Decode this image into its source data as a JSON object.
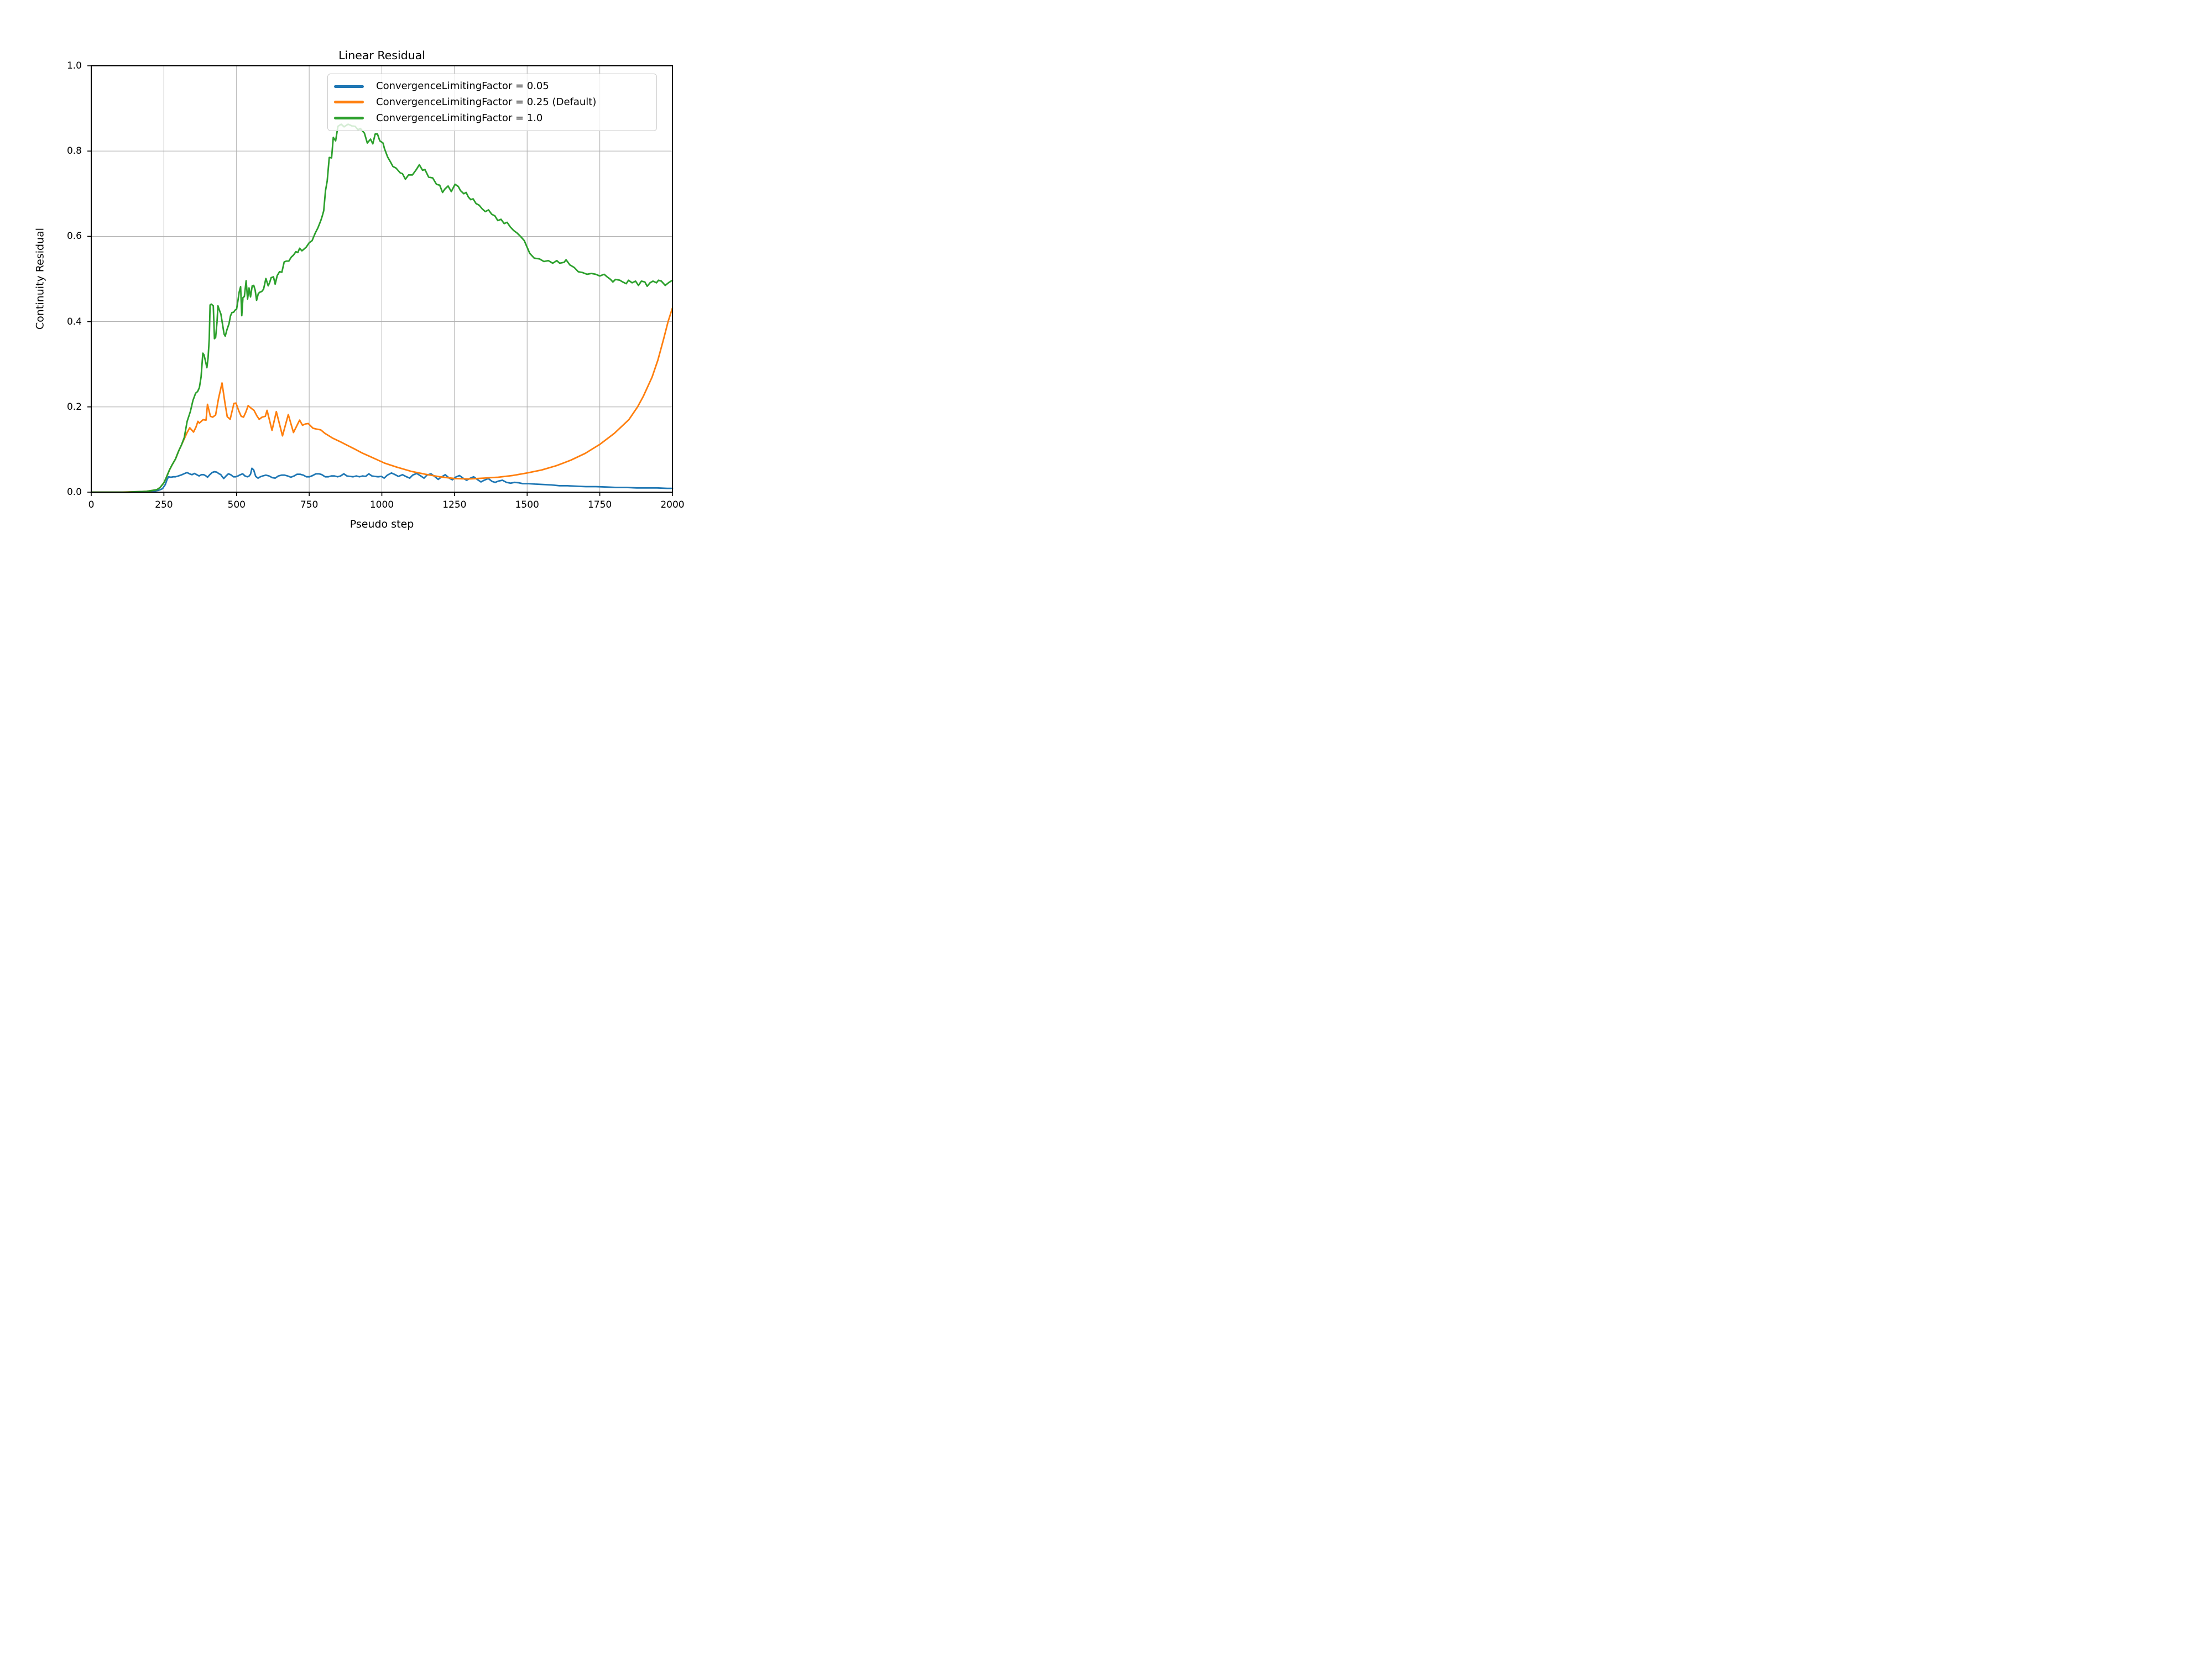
{
  "colors": {
    "background": "#ffffff",
    "text": "#000000",
    "grid": "#b0b0b0",
    "spine": "#000000",
    "legend_border": "#cccccc",
    "series_blue": "#1f77b4",
    "series_orange": "#ff7f0e",
    "series_green": "#2ca02c"
  },
  "chart_data": {
    "type": "line",
    "title": "Linear Residual",
    "xlabel": "Pseudo step",
    "ylabel": "Continuity Residual",
    "xlim": [
      0,
      2000
    ],
    "ylim": [
      0.0,
      1.0
    ],
    "grid": true,
    "gridcolor": "#b0b0b0",
    "legend_position": "upper center-right, inside axes",
    "xticks": {
      "values": [
        0,
        250,
        500,
        750,
        1000,
        1250,
        1500,
        1750,
        2000
      ],
      "labels": [
        "0",
        "250",
        "500",
        "750",
        "1000",
        "1250",
        "1500",
        "1750",
        "2000"
      ]
    },
    "yticks": {
      "values": [
        0.0,
        0.2,
        0.4,
        0.6,
        0.8,
        1.0
      ],
      "labels": [
        "0.0",
        "0.2",
        "0.4",
        "0.6",
        "0.8",
        "1.0"
      ]
    },
    "series": [
      {
        "name": "ConvergenceLimitingFactor = 0.05",
        "color": "#1f77b4",
        "x": [
          0,
          120,
          180,
          210,
          230,
          245,
          255,
          261,
          266,
          274,
          282,
          290,
          300,
          312,
          322,
          330,
          338,
          347,
          355,
          363,
          371,
          379,
          387,
          395,
          400,
          408,
          416,
          424,
          432,
          438,
          446,
          451,
          456,
          464,
          472,
          480,
          489,
          497,
          505,
          513,
          521,
          529,
          537,
          542,
          548,
          553,
          559,
          566,
          574,
          582,
          590,
          601,
          612,
          623,
          633,
          644,
          655,
          665,
          676,
          687,
          698,
          708,
          719,
          730,
          740,
          751,
          762,
          773,
          784,
          794,
          805,
          816,
          826,
          837,
          848,
          858,
          869,
          880,
          891,
          901,
          912,
          923,
          934,
          944,
          955,
          966,
          976,
          987,
          998,
          1008,
          1019,
          1033,
          1043,
          1057,
          1071,
          1085,
          1096,
          1106,
          1120,
          1134,
          1145,
          1155,
          1169,
          1183,
          1194,
          1204,
          1218,
          1232,
          1243,
          1253,
          1267,
          1281,
          1292,
          1302,
          1316,
          1330,
          1341,
          1352,
          1366,
          1380,
          1390,
          1401,
          1415,
          1429,
          1443,
          1457,
          1471,
          1485,
          1506,
          1527,
          1555,
          1583,
          1611,
          1639,
          1667,
          1702,
          1737,
          1772,
          1807,
          1842,
          1877,
          1912,
          1947,
          1982,
          2000
        ],
        "y": [
          0,
          0,
          0.001,
          0.002,
          0.004,
          0.008,
          0.018,
          0.03,
          0.036,
          0.035,
          0.036,
          0.036,
          0.038,
          0.041,
          0.044,
          0.046,
          0.043,
          0.041,
          0.044,
          0.041,
          0.038,
          0.041,
          0.041,
          0.038,
          0.035,
          0.041,
          0.046,
          0.048,
          0.047,
          0.044,
          0.041,
          0.036,
          0.032,
          0.038,
          0.043,
          0.041,
          0.036,
          0.036,
          0.038,
          0.041,
          0.043,
          0.038,
          0.036,
          0.037,
          0.042,
          0.056,
          0.052,
          0.037,
          0.033,
          0.036,
          0.038,
          0.04,
          0.038,
          0.034,
          0.033,
          0.038,
          0.04,
          0.04,
          0.038,
          0.035,
          0.038,
          0.042,
          0.042,
          0.04,
          0.036,
          0.036,
          0.039,
          0.043,
          0.043,
          0.041,
          0.036,
          0.036,
          0.038,
          0.038,
          0.036,
          0.038,
          0.043,
          0.038,
          0.037,
          0.036,
          0.038,
          0.036,
          0.038,
          0.037,
          0.043,
          0.038,
          0.037,
          0.036,
          0.037,
          0.033,
          0.04,
          0.045,
          0.042,
          0.037,
          0.041,
          0.036,
          0.033,
          0.04,
          0.044,
          0.038,
          0.033,
          0.04,
          0.043,
          0.036,
          0.03,
          0.035,
          0.041,
          0.033,
          0.029,
          0.035,
          0.039,
          0.032,
          0.028,
          0.032,
          0.036,
          0.029,
          0.024,
          0.028,
          0.032,
          0.025,
          0.023,
          0.026,
          0.028,
          0.023,
          0.021,
          0.023,
          0.022,
          0.02,
          0.02,
          0.019,
          0.018,
          0.017,
          0.015,
          0.015,
          0.014,
          0.013,
          0.013,
          0.012,
          0.011,
          0.011,
          0.01,
          0.01,
          0.01,
          0.009,
          0.009
        ]
      },
      {
        "name": "ConvergenceLimitingFactor = 0.25 (Default)",
        "color": "#ff7f0e",
        "x": [
          0,
          100,
          160,
          190,
          210,
          226,
          237,
          250,
          258,
          269,
          279,
          290,
          301,
          310,
          320,
          330,
          339,
          352,
          360,
          367,
          372,
          385,
          395,
          400,
          410,
          418,
          428,
          438,
          450,
          460,
          468,
          478,
          491,
          498,
          508,
          516,
          524,
          532,
          540,
          550,
          560,
          570,
          578,
          588,
          599,
          605,
          622,
          637,
          658,
          678,
          696,
          717,
          727,
          737,
          747,
          763,
          775,
          790,
          804,
          830,
          855,
          881,
          907,
          932,
          958,
          984,
          1010,
          1050,
          1100,
          1150,
          1200,
          1250,
          1300,
          1350,
          1400,
          1450,
          1500,
          1550,
          1600,
          1650,
          1700,
          1750,
          1800,
          1850,
          1880,
          1900,
          1930,
          1950,
          1970,
          1985,
          2000
        ],
        "y": [
          0,
          0,
          0.001,
          0.002,
          0.004,
          0.006,
          0.011,
          0.022,
          0.034,
          0.052,
          0.065,
          0.078,
          0.097,
          0.11,
          0.125,
          0.14,
          0.151,
          0.141,
          0.152,
          0.166,
          0.162,
          0.17,
          0.169,
          0.206,
          0.178,
          0.176,
          0.181,
          0.22,
          0.256,
          0.21,
          0.177,
          0.171,
          0.208,
          0.209,
          0.19,
          0.178,
          0.176,
          0.188,
          0.203,
          0.197,
          0.192,
          0.179,
          0.171,
          0.176,
          0.178,
          0.192,
          0.145,
          0.189,
          0.132,
          0.182,
          0.14,
          0.169,
          0.157,
          0.16,
          0.161,
          0.15,
          0.148,
          0.146,
          0.138,
          0.127,
          0.119,
          0.11,
          0.101,
          0.092,
          0.084,
          0.076,
          0.068,
          0.059,
          0.049,
          0.042,
          0.036,
          0.032,
          0.031,
          0.033,
          0.035,
          0.039,
          0.045,
          0.052,
          0.062,
          0.075,
          0.091,
          0.112,
          0.138,
          0.17,
          0.2,
          0.225,
          0.27,
          0.31,
          0.36,
          0.4,
          0.432
        ]
      },
      {
        "name": "ConvergenceLimitingFactor = 1.0",
        "color": "#2ca02c",
        "x": [
          0,
          60,
          120,
          160,
          190,
          210,
          226,
          237,
          250,
          258,
          269,
          279,
          290,
          301,
          310,
          320,
          330,
          341,
          350,
          359,
          366,
          372,
          378,
          384,
          388,
          394,
          398,
          402,
          406,
          409,
          413,
          420,
          424,
          428,
          433,
          436,
          441,
          446,
          451,
          457,
          461,
          467,
          474,
          479,
          484,
          490,
          495,
          500,
          505,
          509,
          514,
          518,
          522,
          527,
          533,
          538,
          543,
          548,
          554,
          559,
          564,
          569,
          575,
          580,
          587,
          593,
          601,
          609,
          614,
          619,
          627,
          633,
          640,
          648,
          656,
          664,
          672,
          680,
          688,
          696,
          704,
          711,
          717,
          725,
          732,
          740,
          750,
          760,
          771,
          780,
          790,
          795,
          800,
          806,
          812,
          819,
          827,
          833,
          841,
          849,
          860,
          870,
          884,
          897,
          908,
          918,
          926,
          940,
          950,
          961,
          969,
          977,
          985,
          993,
          1004,
          1009,
          1020,
          1030,
          1038,
          1049,
          1063,
          1071,
          1081,
          1092,
          1105,
          1119,
          1129,
          1140,
          1148,
          1161,
          1175,
          1188,
          1199,
          1209,
          1217,
          1228,
          1239,
          1252,
          1263,
          1271,
          1282,
          1290,
          1298,
          1306,
          1314,
          1324,
          1335,
          1346,
          1356,
          1367,
          1378,
          1389,
          1399,
          1410,
          1421,
          1431,
          1442,
          1453,
          1465,
          1477,
          1490,
          1509,
          1524,
          1543,
          1558,
          1573,
          1588,
          1602,
          1612,
          1627,
          1634,
          1647,
          1662,
          1676,
          1691,
          1706,
          1721,
          1736,
          1750,
          1765,
          1775,
          1787,
          1795,
          1804,
          1819,
          1829,
          1841,
          1849,
          1861,
          1873,
          1883,
          1893,
          1905,
          1913,
          1923,
          1933,
          1945,
          1952,
          1962,
          1975,
          1988,
          2000
        ],
        "y": [
          0,
          0,
          0,
          0.001,
          0.002,
          0.004,
          0.006,
          0.011,
          0.022,
          0.034,
          0.052,
          0.065,
          0.078,
          0.097,
          0.11,
          0.128,
          0.166,
          0.189,
          0.215,
          0.232,
          0.236,
          0.245,
          0.27,
          0.326,
          0.322,
          0.305,
          0.292,
          0.315,
          0.36,
          0.439,
          0.441,
          0.437,
          0.36,
          0.363,
          0.4,
          0.437,
          0.427,
          0.418,
          0.397,
          0.371,
          0.366,
          0.381,
          0.395,
          0.413,
          0.421,
          0.422,
          0.427,
          0.429,
          0.45,
          0.469,
          0.482,
          0.414,
          0.456,
          0.459,
          0.496,
          0.453,
          0.479,
          0.458,
          0.484,
          0.485,
          0.474,
          0.45,
          0.466,
          0.469,
          0.471,
          0.476,
          0.501,
          0.484,
          0.492,
          0.503,
          0.505,
          0.488,
          0.508,
          0.517,
          0.516,
          0.54,
          0.542,
          0.542,
          0.551,
          0.556,
          0.564,
          0.562,
          0.572,
          0.566,
          0.57,
          0.575,
          0.585,
          0.59,
          0.608,
          0.62,
          0.637,
          0.648,
          0.66,
          0.707,
          0.73,
          0.785,
          0.784,
          0.832,
          0.824,
          0.858,
          0.863,
          0.857,
          0.863,
          0.859,
          0.858,
          0.85,
          0.853,
          0.842,
          0.819,
          0.828,
          0.817,
          0.84,
          0.84,
          0.824,
          0.819,
          0.806,
          0.786,
          0.774,
          0.764,
          0.76,
          0.749,
          0.747,
          0.734,
          0.744,
          0.744,
          0.757,
          0.768,
          0.755,
          0.757,
          0.739,
          0.737,
          0.722,
          0.72,
          0.703,
          0.711,
          0.718,
          0.705,
          0.722,
          0.717,
          0.707,
          0.7,
          0.703,
          0.692,
          0.686,
          0.688,
          0.677,
          0.673,
          0.664,
          0.658,
          0.662,
          0.652,
          0.648,
          0.637,
          0.64,
          0.63,
          0.633,
          0.622,
          0.614,
          0.608,
          0.6,
          0.59,
          0.56,
          0.549,
          0.547,
          0.541,
          0.543,
          0.537,
          0.543,
          0.537,
          0.539,
          0.545,
          0.533,
          0.527,
          0.517,
          0.515,
          0.511,
          0.513,
          0.511,
          0.507,
          0.511,
          0.505,
          0.499,
          0.493,
          0.499,
          0.497,
          0.493,
          0.489,
          0.497,
          0.491,
          0.495,
          0.485,
          0.495,
          0.493,
          0.483,
          0.491,
          0.495,
          0.491,
          0.497,
          0.495,
          0.485,
          0.492,
          0.497
        ]
      }
    ]
  }
}
